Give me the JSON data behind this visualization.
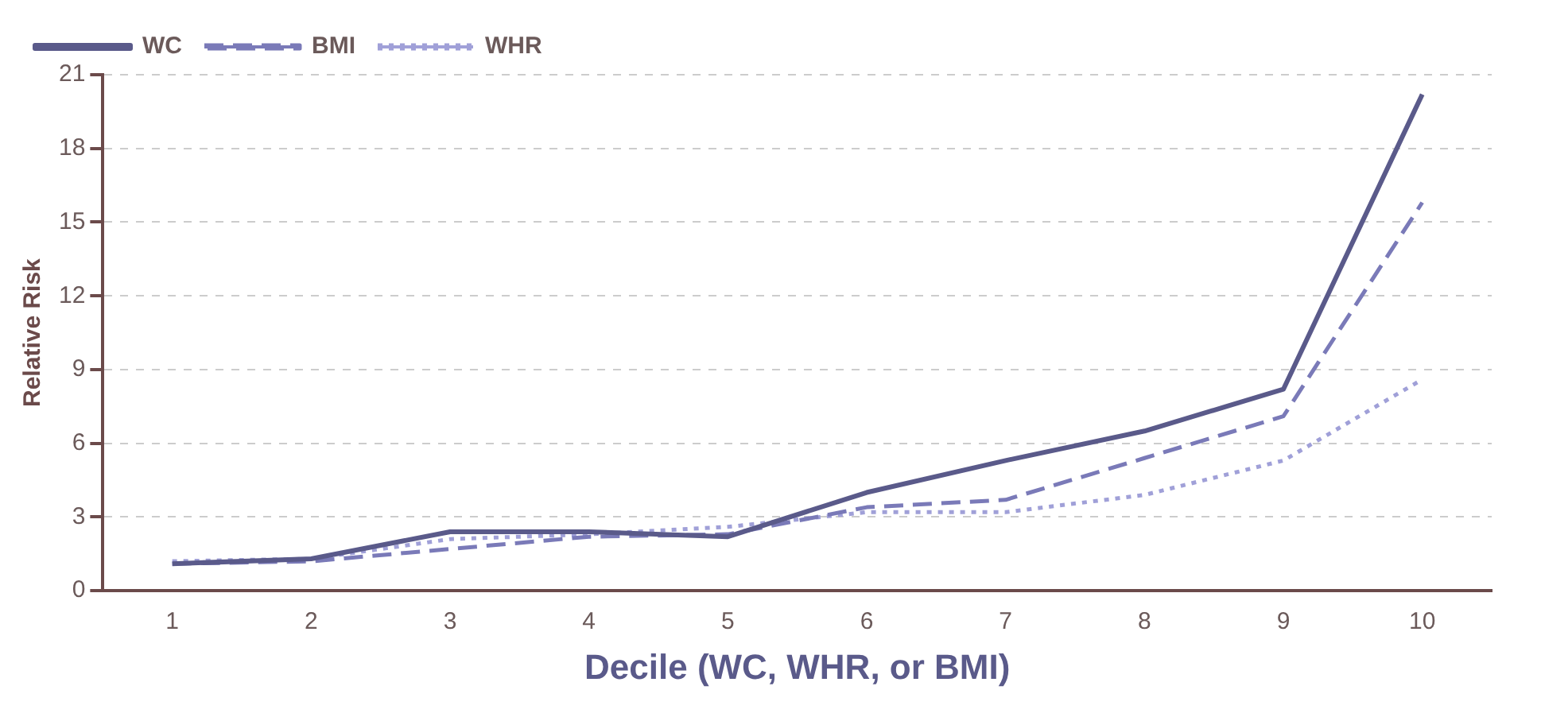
{
  "chart_data": {
    "type": "line",
    "xlabel": "Decile (WC, WHR, or BMI)",
    "ylabel": "Relative Risk",
    "categories": [
      "1",
      "2",
      "3",
      "4",
      "5",
      "6",
      "7",
      "8",
      "9",
      "10"
    ],
    "series": [
      {
        "name": "WC",
        "color": "#5a5a8a",
        "line_style": "solid",
        "values": [
          1.1,
          1.3,
          2.4,
          2.4,
          2.2,
          4.0,
          5.3,
          6.5,
          8.2,
          20.2
        ]
      },
      {
        "name": "BMI",
        "color": "#7a7ab8",
        "line_style": "dashed",
        "values": [
          1.1,
          1.2,
          1.7,
          2.2,
          2.3,
          3.4,
          3.7,
          5.4,
          7.1,
          15.8
        ]
      },
      {
        "name": "WHR",
        "color": "#a0a0d8",
        "line_style": "dotted",
        "values": [
          1.2,
          1.3,
          2.1,
          2.3,
          2.6,
          3.2,
          3.2,
          3.9,
          5.3,
          8.6
        ]
      }
    ],
    "ylim": [
      0,
      21
    ],
    "yticks": [
      0,
      3,
      6,
      9,
      12,
      15,
      18,
      21
    ],
    "grid": "y",
    "legend": "top left",
    "marker": "none"
  }
}
